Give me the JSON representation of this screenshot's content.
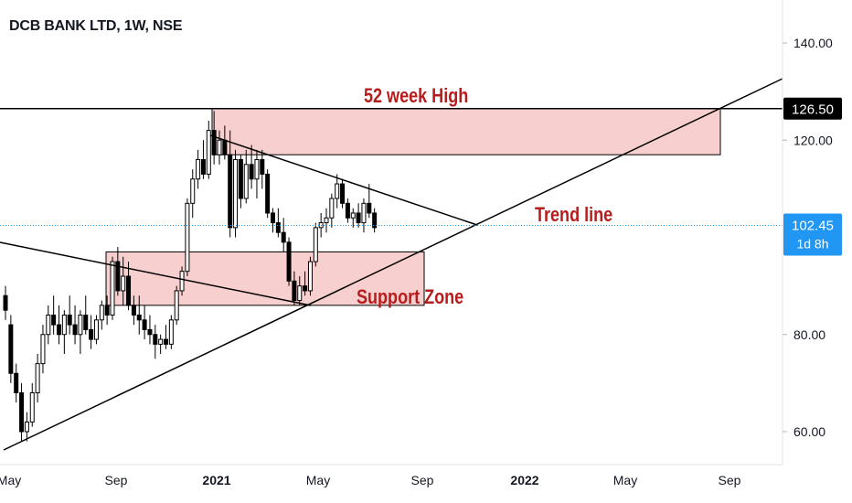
{
  "header": {
    "title": "DCB BANK LTD, 1W, NSE"
  },
  "chart_data": {
    "type": "candlestick",
    "symbol": "DCB BANK LTD",
    "interval": "1W",
    "exchange": "NSE",
    "x_ticks": [
      "May",
      "Sep",
      "2021",
      "May",
      "Sep",
      "2022",
      "May",
      "Sep"
    ],
    "y_ticks": [
      60,
      80,
      120,
      140
    ],
    "ylim": [
      56,
      148
    ],
    "price_tag": {
      "value": "102.45",
      "countdown": "1d 8h",
      "color": "#2196f3"
    },
    "resistance_tag": {
      "value": "126.50"
    },
    "annotations": {
      "high_label": "52 week High",
      "trend_label": "Trend line",
      "support_label": "Support Zone"
    },
    "zones": {
      "high": {
        "low": 117,
        "high": 126.5
      },
      "support": {
        "low": 86,
        "high": 97
      }
    },
    "colors": {
      "zone_fill": "#f8cfcf",
      "annotation": "#b71c1c",
      "line": "#000000",
      "price": "#2196f3"
    },
    "candles": [
      [
        88,
        90,
        83,
        85
      ],
      [
        82,
        84,
        70,
        72
      ],
      [
        72,
        74,
        66,
        68
      ],
      [
        68,
        70,
        58,
        60
      ],
      [
        60,
        64,
        58,
        62
      ],
      [
        62,
        70,
        61,
        68
      ],
      [
        68,
        76,
        66,
        74
      ],
      [
        74,
        82,
        72,
        80
      ],
      [
        80,
        86,
        78,
        84
      ],
      [
        84,
        88,
        80,
        82
      ],
      [
        82,
        86,
        78,
        80
      ],
      [
        80,
        85,
        76,
        84
      ],
      [
        84,
        88,
        80,
        82
      ],
      [
        82,
        86,
        78,
        80
      ],
      [
        80,
        85,
        76,
        84
      ],
      [
        84,
        88,
        80,
        81
      ],
      [
        81,
        84,
        77,
        79
      ],
      [
        79,
        84,
        78,
        83
      ],
      [
        83,
        87,
        81,
        86
      ],
      [
        86,
        88,
        82,
        84
      ],
      [
        84,
        96,
        83,
        95
      ],
      [
        95,
        98,
        88,
        89
      ],
      [
        89,
        96,
        86,
        92
      ],
      [
        92,
        95,
        85,
        86
      ],
      [
        86,
        88,
        82,
        84
      ],
      [
        84,
        88,
        80,
        83
      ],
      [
        83,
        86,
        79,
        81
      ],
      [
        81,
        84,
        78,
        80
      ],
      [
        80,
        82,
        75,
        78
      ],
      [
        78,
        80,
        76,
        79
      ],
      [
        79,
        82,
        77,
        78
      ],
      [
        78,
        84,
        77,
        83
      ],
      [
        83,
        90,
        82,
        89
      ],
      [
        89,
        94,
        88,
        93
      ],
      [
        93,
        108,
        92,
        107
      ],
      [
        107,
        114,
        104,
        112
      ],
      [
        112,
        118,
        110,
        116
      ],
      [
        116,
        120,
        112,
        113
      ],
      [
        113,
        124,
        112,
        122
      ],
      [
        122,
        126,
        115,
        117
      ],
      [
        117,
        122,
        115,
        120
      ],
      [
        120,
        123,
        116,
        117
      ],
      [
        117,
        122,
        100,
        102
      ],
      [
        102,
        118,
        100,
        116
      ],
      [
        116,
        117,
        106,
        108
      ],
      [
        108,
        118,
        107,
        115
      ],
      [
        115,
        119,
        110,
        112
      ],
      [
        112,
        118,
        108,
        116
      ],
      [
        116,
        118,
        110,
        113
      ],
      [
        113,
        114,
        104,
        105
      ],
      [
        105,
        106,
        101,
        103
      ],
      [
        103,
        106,
        100,
        101
      ],
      [
        101,
        104,
        97,
        99
      ],
      [
        99,
        100,
        90,
        91
      ],
      [
        91,
        93,
        86,
        87
      ],
      [
        87,
        92,
        86,
        90
      ],
      [
        90,
        93,
        88,
        89
      ],
      [
        89,
        96,
        88,
        95
      ],
      [
        95,
        103,
        94,
        102
      ],
      [
        102,
        105,
        100,
        103
      ],
      [
        103,
        106,
        101,
        104
      ],
      [
        104,
        109,
        102,
        108
      ],
      [
        108,
        113,
        106,
        111
      ],
      [
        111,
        112,
        106,
        107
      ],
      [
        107,
        108,
        103,
        104
      ],
      [
        104,
        106,
        102,
        105
      ],
      [
        105,
        107,
        102,
        103
      ],
      [
        103,
        108,
        101,
        107
      ],
      [
        107,
        111,
        104,
        105
      ],
      [
        105,
        106,
        101,
        102
      ]
    ]
  }
}
